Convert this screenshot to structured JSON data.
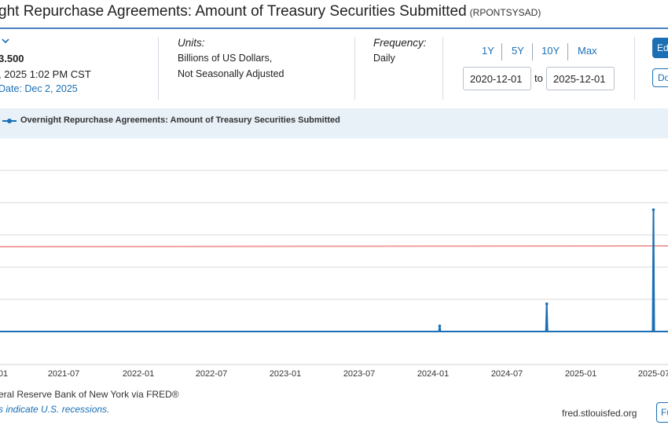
{
  "header": {
    "title": "ght Repurchase Agreements: Amount of Treasury Securities Submitted",
    "series_id": "(RPONTSYSAD)"
  },
  "observation": {
    "value": "3.500",
    "date": ", 2025 1:02 PM CST",
    "updated": "Date: Dec 2, 2025"
  },
  "units": {
    "heading": "Units:",
    "line1": "Billions of US Dollars,",
    "line2": "Not Seasonally Adjusted"
  },
  "frequency": {
    "heading": "Frequency:",
    "value": "Daily"
  },
  "range_buttons": [
    "1Y",
    "5Y",
    "10Y",
    "Max"
  ],
  "date_range": {
    "from": "2020-12-01",
    "to_label": "to",
    "to": "2025-12-01"
  },
  "buttons": {
    "edit": "Ed",
    "download": "Do",
    "fullscreen": "Fu"
  },
  "legend": {
    "label": "Overnight Repurchase Agreements: Amount of Treasury Securities Submitted"
  },
  "footer": {
    "source": "eral Reserve Bank of New York via FRED®",
    "recessions": "s indicate U.S. recessions.",
    "site": "fred.stlouisfed.org"
  },
  "colors": {
    "series": "#1a6fb5",
    "reference_line": "#f0a0a0",
    "accent": "#1a6fb5"
  },
  "chart_data": {
    "type": "line",
    "x_tick_labels": [
      "01",
      "2021-07",
      "2022-01",
      "2022-07",
      "2023-01",
      "2023-07",
      "2024-01",
      "2024-07",
      "2025-01",
      "2025-07"
    ],
    "xlim": [
      "2020-12-01",
      "2025-12-01"
    ],
    "grid": true,
    "legend_position": "top-left",
    "series": [
      {
        "name": "Overnight Repurchase Agreements: Amount of Treasury Securities Submitted",
        "points": [
          {
            "date": "2020-12-01",
            "value": 0.0
          },
          {
            "date": "2023-12-29",
            "value": 0.0
          },
          {
            "date": "2023-12-31",
            "value": 1.0
          },
          {
            "date": "2024-01-02",
            "value": 0.0
          },
          {
            "date": "2024-09-28",
            "value": 0.0
          },
          {
            "date": "2024-09-30",
            "value": 5.0
          },
          {
            "date": "2024-10-02",
            "value": 0.0
          },
          {
            "date": "2025-06-28",
            "value": 0.0
          },
          {
            "date": "2025-06-30",
            "value": 22.0
          },
          {
            "date": "2025-07-02",
            "value": 0.0
          },
          {
            "date": "2025-12-01",
            "value": 0.0
          }
        ]
      }
    ]
  }
}
